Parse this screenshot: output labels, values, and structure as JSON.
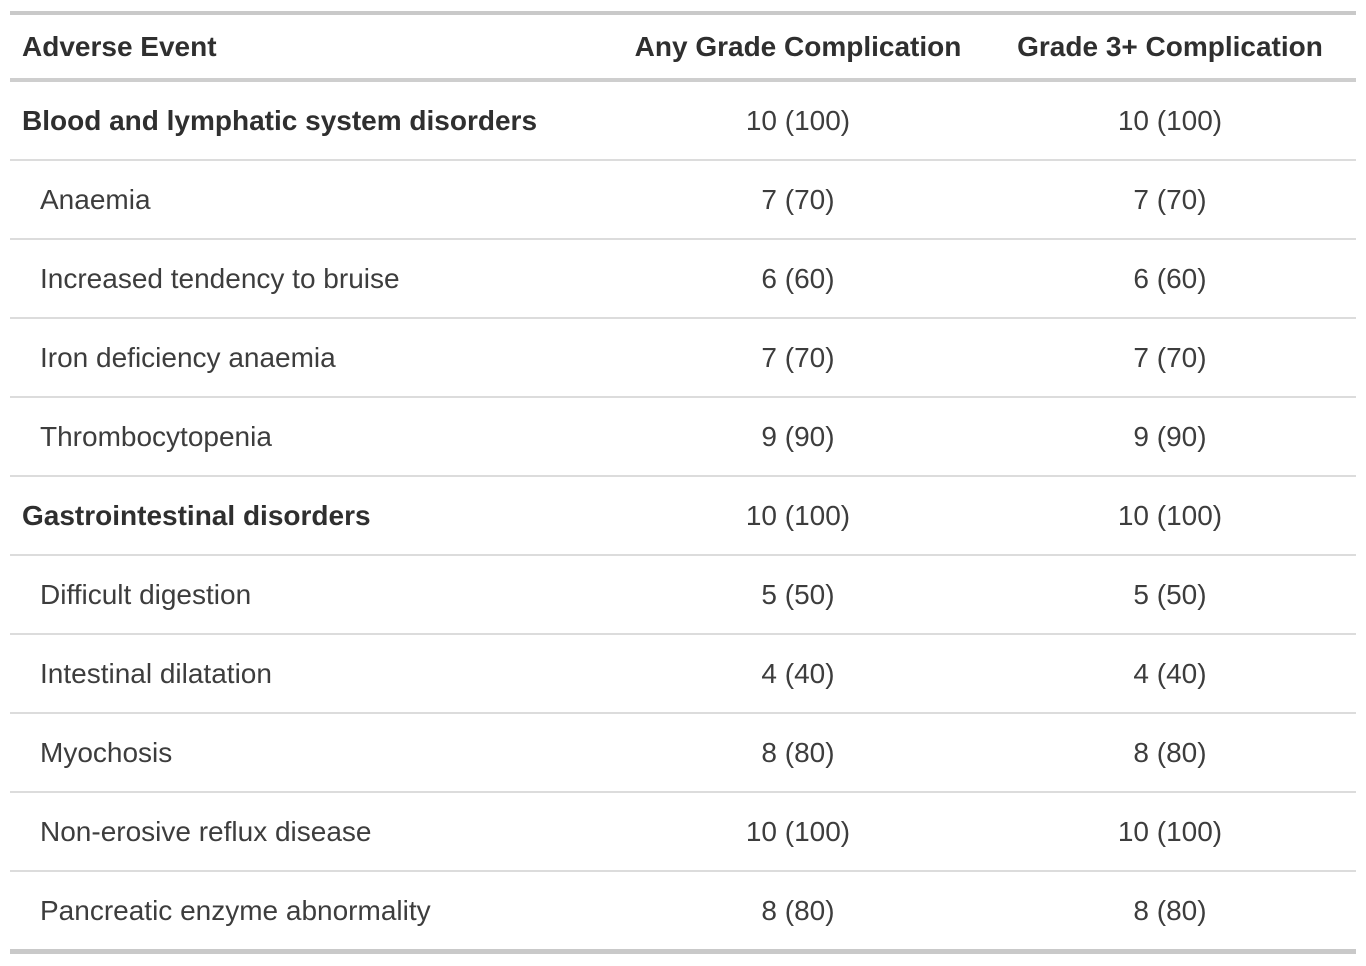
{
  "chart_data": {
    "type": "table",
    "columns": [
      {
        "label": "Adverse Event",
        "align": "left"
      },
      {
        "label": "Any Grade Complication",
        "align": "center"
      },
      {
        "label": "Grade 3+ Complication",
        "align": "center"
      }
    ],
    "rows": [
      {
        "label": "Blood and lymphatic system disorders",
        "group": true,
        "any_grade": "10 (100)",
        "grade3": "10 (100)"
      },
      {
        "label": "Anaemia",
        "group": false,
        "any_grade": "7 (70)",
        "grade3": "7 (70)"
      },
      {
        "label": "Increased tendency to bruise",
        "group": false,
        "any_grade": "6 (60)",
        "grade3": "6 (60)"
      },
      {
        "label": "Iron deficiency anaemia",
        "group": false,
        "any_grade": "7 (70)",
        "grade3": "7 (70)"
      },
      {
        "label": "Thrombocytopenia",
        "group": false,
        "any_grade": "9 (90)",
        "grade3": "9 (90)"
      },
      {
        "label": "Gastrointestinal disorders",
        "group": true,
        "any_grade": "10 (100)",
        "grade3": "10 (100)"
      },
      {
        "label": "Difficult digestion",
        "group": false,
        "any_grade": "5 (50)",
        "grade3": "5 (50)"
      },
      {
        "label": "Intestinal dilatation",
        "group": false,
        "any_grade": "4 (40)",
        "grade3": "4 (40)"
      },
      {
        "label": "Myochosis",
        "group": false,
        "any_grade": "8 (80)",
        "grade3": "8 (80)"
      },
      {
        "label": "Non-erosive reflux disease",
        "group": false,
        "any_grade": "10 (100)",
        "grade3": "10 (100)"
      },
      {
        "label": "Pancreatic enzyme abnormality",
        "group": false,
        "any_grade": "8 (80)",
        "grade3": "8 (80)"
      }
    ],
    "layout_hints": {
      "group_rows_bold": true,
      "sub_rows_indented": true,
      "value_columns_centered": true
    }
  },
  "colors": {
    "background": "#ffffff",
    "outer_border": "#c9c9c9",
    "header_border": "#cecece",
    "row_border": "#dcdcdc",
    "header_text": "#2f2f2f",
    "body_text": "#3d3d3d"
  }
}
